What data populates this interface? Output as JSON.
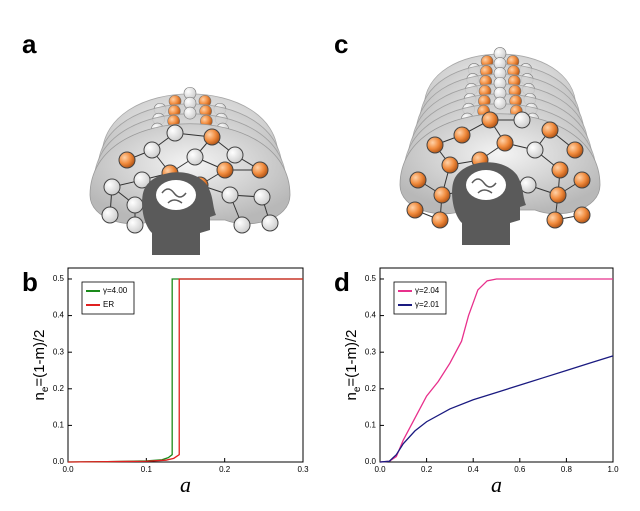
{
  "figure": {
    "panel_labels": [
      "a",
      "b",
      "c",
      "d"
    ]
  },
  "chart_data": [
    {
      "type": "line",
      "x_label": "a",
      "y_label_parts": [
        "n",
        "e",
        "=(1-m)/2"
      ],
      "xlim": [
        0,
        0.3
      ],
      "ylim": [
        0,
        0.53
      ],
      "xticks": [
        {
          "value": 0,
          "label": "0.0"
        },
        0.1,
        0.2,
        0.3
      ],
      "yticks": [
        {
          "value": 0,
          "label": "0.0"
        },
        0.1,
        0.2,
        0.3,
        0.4,
        0.5
      ],
      "legend": "top-left",
      "series": [
        {
          "name": "γ=4.00",
          "color": "#1a8a1a",
          "x": [
            0,
            0.05,
            0.1,
            0.12,
            0.128,
            0.133,
            0.133,
            0.3
          ],
          "values": [
            0,
            0.001,
            0.003,
            0.006,
            0.012,
            0.02,
            0.5,
            0.5
          ]
        },
        {
          "name": "ER",
          "color": "#e02020",
          "x": [
            0,
            0.05,
            0.1,
            0.125,
            0.135,
            0.142,
            0.142,
            0.3
          ],
          "values": [
            0,
            0.001,
            0.002,
            0.005,
            0.01,
            0.02,
            0.5,
            0.5
          ]
        }
      ]
    },
    {
      "type": "line",
      "x_label": "a",
      "y_label_parts": [
        "n",
        "e",
        "=(1-m)/2"
      ],
      "xlim": [
        0,
        1
      ],
      "ylim": [
        0,
        0.53
      ],
      "xticks": [
        {
          "value": 0,
          "label": "0.0"
        },
        0.2,
        0.4,
        0.6,
        0.8,
        {
          "value": 1,
          "label": "1.0"
        }
      ],
      "yticks": [
        {
          "value": 0,
          "label": "0.0"
        },
        0.1,
        0.2,
        0.3,
        0.4,
        0.5
      ],
      "legend": "top-left",
      "series": [
        {
          "name": "γ=2.04",
          "color": "#e8308c",
          "x": [
            0,
            0.04,
            0.07,
            0.1,
            0.15,
            0.2,
            0.25,
            0.3,
            0.35,
            0.38,
            0.42,
            0.46,
            0.5,
            0.6,
            0.8,
            1.0
          ],
          "values": [
            0,
            0.002,
            0.015,
            0.06,
            0.12,
            0.18,
            0.22,
            0.27,
            0.33,
            0.4,
            0.47,
            0.495,
            0.5,
            0.5,
            0.5,
            0.5
          ]
        },
        {
          "name": "γ=2.01",
          "color": "#1a1a80",
          "x": [
            0,
            0.04,
            0.07,
            0.1,
            0.15,
            0.2,
            0.3,
            0.4,
            0.5,
            0.6,
            0.7,
            0.8,
            0.9,
            1.0
          ],
          "values": [
            0,
            0.002,
            0.02,
            0.05,
            0.085,
            0.11,
            0.145,
            0.17,
            0.19,
            0.21,
            0.23,
            0.25,
            0.27,
            0.29
          ]
        }
      ]
    }
  ]
}
